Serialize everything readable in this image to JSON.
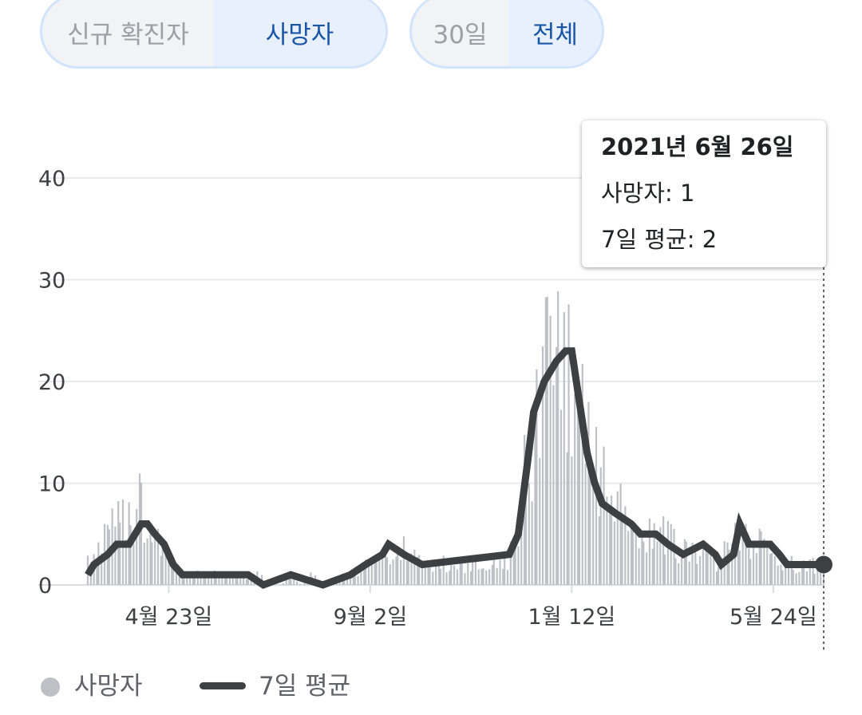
{
  "toggles": {
    "metric": [
      {
        "label": "신규 확진자",
        "active": false
      },
      {
        "label": "사망자",
        "active": true
      }
    ],
    "range": [
      {
        "label": "30일",
        "active": false
      },
      {
        "label": "전체",
        "active": true
      }
    ]
  },
  "tooltip": {
    "date": "2021년 6월 26일",
    "deaths": "사망자: 1",
    "avg": "7일 평균: 2"
  },
  "legend": {
    "deaths": "사망자",
    "avg": "7일 평균"
  },
  "colors": {
    "bars": "#bdc1c6",
    "avg_line": "#3c4043",
    "grid": "#e8eaed",
    "accent": "#1a56a8"
  },
  "chart_data": {
    "type": "bar",
    "x_start": "2020-03-01",
    "x_end": "2021-06-26",
    "ylim": [
      0,
      40
    ],
    "yticks": [
      "0",
      "10",
      "20",
      "30",
      "40"
    ],
    "xticks": [
      {
        "date": "2020-04-23",
        "label": "4월 23일"
      },
      {
        "date": "2020-09-02",
        "label": "9월 2일"
      },
      {
        "date": "2021-01-12",
        "label": "1월 12일"
      },
      {
        "date": "2021-05-24",
        "label": "5월 24일"
      }
    ],
    "series": [
      {
        "name": "사망자",
        "kind": "bar",
        "points": [
          [
            "2020-03-01",
            2
          ],
          [
            "2020-03-08",
            3
          ],
          [
            "2020-03-15",
            5
          ],
          [
            "2020-03-22",
            6
          ],
          [
            "2020-03-29",
            6
          ],
          [
            "2020-04-05",
            8
          ],
          [
            "2020-04-12",
            6
          ],
          [
            "2020-04-19",
            4
          ],
          [
            "2020-04-26",
            2
          ],
          [
            "2020-05-03",
            1
          ],
          [
            "2020-05-10",
            1
          ],
          [
            "2020-05-17",
            1
          ],
          [
            "2020-05-24",
            1
          ],
          [
            "2020-05-31",
            1
          ],
          [
            "2020-06-07",
            1
          ],
          [
            "2020-06-14",
            1
          ],
          [
            "2020-06-21",
            1
          ],
          [
            "2020-06-28",
            0
          ],
          [
            "2020-07-05",
            0
          ],
          [
            "2020-07-12",
            1
          ],
          [
            "2020-07-19",
            0
          ],
          [
            "2020-07-26",
            1
          ],
          [
            "2020-08-02",
            0
          ],
          [
            "2020-08-09",
            0
          ],
          [
            "2020-08-16",
            1
          ],
          [
            "2020-08-23",
            1
          ],
          [
            "2020-08-30",
            2
          ],
          [
            "2020-09-06",
            2
          ],
          [
            "2020-09-13",
            3
          ],
          [
            "2020-09-20",
            4
          ],
          [
            "2020-09-27",
            3
          ],
          [
            "2020-10-04",
            3
          ],
          [
            "2020-10-11",
            2
          ],
          [
            "2020-10-18",
            2
          ],
          [
            "2020-10-25",
            2
          ],
          [
            "2020-11-01",
            2
          ],
          [
            "2020-11-08",
            2
          ],
          [
            "2020-11-15",
            2
          ],
          [
            "2020-11-22",
            2
          ],
          [
            "2020-11-29",
            2
          ],
          [
            "2020-12-06",
            4
          ],
          [
            "2020-12-13",
            12
          ],
          [
            "2020-12-20",
            17
          ],
          [
            "2020-12-27",
            20
          ],
          [
            "2021-01-03",
            22
          ],
          [
            "2021-01-10",
            23
          ],
          [
            "2021-01-17",
            17
          ],
          [
            "2021-01-24",
            13
          ],
          [
            "2021-01-31",
            10
          ],
          [
            "2021-02-07",
            8
          ],
          [
            "2021-02-14",
            7
          ],
          [
            "2021-02-21",
            6
          ],
          [
            "2021-02-28",
            6
          ],
          [
            "2021-03-07",
            5
          ],
          [
            "2021-03-14",
            5
          ],
          [
            "2021-03-21",
            4
          ],
          [
            "2021-03-28",
            3
          ],
          [
            "2021-04-04",
            3
          ],
          [
            "2021-04-11",
            3
          ],
          [
            "2021-04-18",
            2
          ],
          [
            "2021-04-25",
            4
          ],
          [
            "2021-05-02",
            5
          ],
          [
            "2021-05-09",
            4
          ],
          [
            "2021-05-16",
            4
          ],
          [
            "2021-05-23",
            3
          ],
          [
            "2021-05-30",
            2
          ],
          [
            "2021-06-06",
            2
          ],
          [
            "2021-06-13",
            2
          ],
          [
            "2021-06-20",
            2
          ],
          [
            "2021-06-26",
            1
          ]
        ]
      },
      {
        "name": "7일 평균",
        "kind": "line",
        "points": [
          [
            "2020-03-01",
            1
          ],
          [
            "2020-03-05",
            2
          ],
          [
            "2020-03-14",
            3
          ],
          [
            "2020-03-20",
            4
          ],
          [
            "2020-03-28",
            4
          ],
          [
            "2020-04-05",
            6
          ],
          [
            "2020-04-09",
            6
          ],
          [
            "2020-04-14",
            5
          ],
          [
            "2020-04-20",
            4
          ],
          [
            "2020-04-26",
            2
          ],
          [
            "2020-05-02",
            1
          ],
          [
            "2020-06-14",
            1
          ],
          [
            "2020-06-24",
            0
          ],
          [
            "2020-07-12",
            1
          ],
          [
            "2020-08-02",
            0
          ],
          [
            "2020-08-20",
            1
          ],
          [
            "2020-08-30",
            2
          ],
          [
            "2020-09-10",
            3
          ],
          [
            "2020-09-14",
            4
          ],
          [
            "2020-09-24",
            3
          ],
          [
            "2020-10-06",
            2
          ],
          [
            "2020-12-02",
            3
          ],
          [
            "2020-12-08",
            5
          ],
          [
            "2020-12-14",
            12
          ],
          [
            "2020-12-18",
            17
          ],
          [
            "2020-12-25",
            20
          ],
          [
            "2021-01-02",
            22
          ],
          [
            "2021-01-08",
            23
          ],
          [
            "2021-01-12",
            23
          ],
          [
            "2021-01-17",
            18
          ],
          [
            "2021-01-22",
            13
          ],
          [
            "2021-01-27",
            10
          ],
          [
            "2021-02-01",
            8
          ],
          [
            "2021-02-10",
            7
          ],
          [
            "2021-02-20",
            6
          ],
          [
            "2021-02-26",
            5
          ],
          [
            "2021-03-08",
            5
          ],
          [
            "2021-03-16",
            4
          ],
          [
            "2021-03-26",
            3
          ],
          [
            "2021-04-08",
            4
          ],
          [
            "2021-04-16",
            3
          ],
          [
            "2021-04-20",
            2
          ],
          [
            "2021-04-28",
            3
          ],
          [
            "2021-05-02",
            6
          ],
          [
            "2021-05-08",
            4
          ],
          [
            "2021-05-22",
            4
          ],
          [
            "2021-05-28",
            3
          ],
          [
            "2021-06-02",
            2
          ],
          [
            "2021-06-26",
            2
          ]
        ]
      }
    ]
  }
}
